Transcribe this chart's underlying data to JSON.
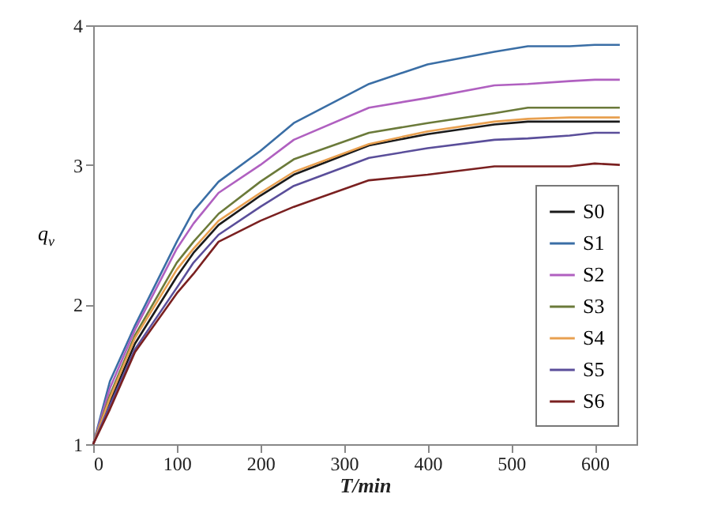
{
  "chart_data": {
    "type": "line",
    "xlabel": "T/min",
    "ylabel": "q$_{v}$",
    "xlim": [
      0,
      650
    ],
    "xticks": [
      0,
      100,
      200,
      300,
      400,
      500,
      600
    ],
    "ylim": [
      1,
      4
    ],
    "yticks": [
      1,
      2,
      3,
      4
    ],
    "legend": "bottom right",
    "grid": false,
    "marker": "none",
    "line_style": "solid",
    "x": [
      0,
      20,
      50,
      100,
      120,
      150,
      200,
      240,
      330,
      400,
      480,
      520,
      570,
      600,
      630
    ],
    "series": [
      {
        "name": "S0",
        "color": "#1a1a1a",
        "values": [
          1,
          1.3,
          1.72,
          2.2,
          2.37,
          2.57,
          2.78,
          2.93,
          3.14,
          3.22,
          3.29,
          3.31,
          3.31,
          3.31,
          3.31
        ]
      },
      {
        "name": "S1",
        "color": "#3a6ea5",
        "values": [
          1,
          1.45,
          1.85,
          2.45,
          2.67,
          2.88,
          3.1,
          3.3,
          3.58,
          3.72,
          3.81,
          3.85,
          3.85,
          3.86,
          3.86
        ]
      },
      {
        "name": "S2",
        "color": "#b060c0",
        "values": [
          1,
          1.4,
          1.82,
          2.4,
          2.58,
          2.8,
          3.0,
          3.18,
          3.41,
          3.48,
          3.57,
          3.58,
          3.6,
          3.61,
          3.61
        ]
      },
      {
        "name": "S3",
        "color": "#6b7a3a",
        "values": [
          1,
          1.35,
          1.78,
          2.3,
          2.45,
          2.65,
          2.88,
          3.04,
          3.23,
          3.3,
          3.37,
          3.41,
          3.41,
          3.41,
          3.41
        ]
      },
      {
        "name": "S4",
        "color": "#e8a050",
        "values": [
          1,
          1.33,
          1.76,
          2.25,
          2.4,
          2.6,
          2.8,
          2.95,
          3.15,
          3.24,
          3.31,
          3.33,
          3.34,
          3.34,
          3.34
        ]
      },
      {
        "name": "S5",
        "color": "#5a4e9a",
        "values": [
          1,
          1.28,
          1.68,
          2.12,
          2.3,
          2.5,
          2.7,
          2.85,
          3.05,
          3.12,
          3.18,
          3.19,
          3.21,
          3.23,
          3.23
        ]
      },
      {
        "name": "S6",
        "color": "#7a2020",
        "values": [
          1,
          1.25,
          1.66,
          2.08,
          2.22,
          2.45,
          2.6,
          2.7,
          2.89,
          2.93,
          2.99,
          2.99,
          2.99,
          3.01,
          3.0
        ]
      }
    ]
  }
}
